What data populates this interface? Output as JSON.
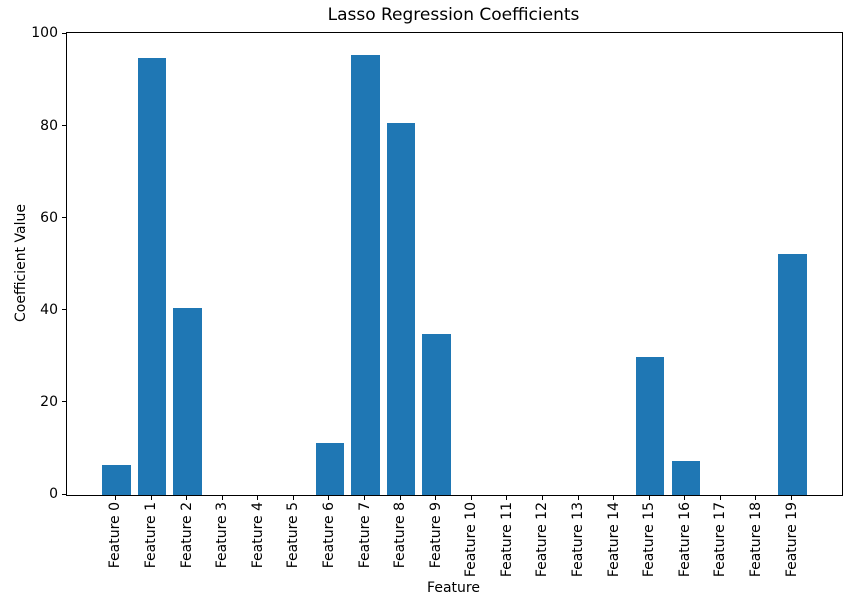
{
  "figure": {
    "background": "#ffffff",
    "text_color": "#000000"
  },
  "chart_data": {
    "type": "bar",
    "title": "Lasso Regression Coefficients",
    "xlabel": "Feature",
    "ylabel": "Coefficient Value",
    "categories": [
      "Feature 0",
      "Feature 1",
      "Feature 2",
      "Feature 3",
      "Feature 4",
      "Feature 5",
      "Feature 6",
      "Feature 7",
      "Feature 8",
      "Feature 9",
      "Feature 10",
      "Feature 11",
      "Feature 12",
      "Feature 13",
      "Feature 14",
      "Feature 15",
      "Feature 16",
      "Feature 17",
      "Feature 18",
      "Feature 19"
    ],
    "values": [
      6.5,
      94.9,
      40.6,
      0,
      0,
      0,
      11.2,
      95.6,
      80.7,
      35.0,
      0,
      0,
      0,
      0,
      0,
      30.0,
      7.3,
      0,
      0,
      52.3
    ],
    "ylim": [
      0,
      100.3
    ],
    "yticks": [
      0,
      20,
      40,
      60,
      80,
      100
    ],
    "xlim": [
      -1.39,
      20.39
    ],
    "bar_color": "#1f77b4",
    "bar_width": 0.8,
    "grid": false,
    "legend": "none"
  }
}
